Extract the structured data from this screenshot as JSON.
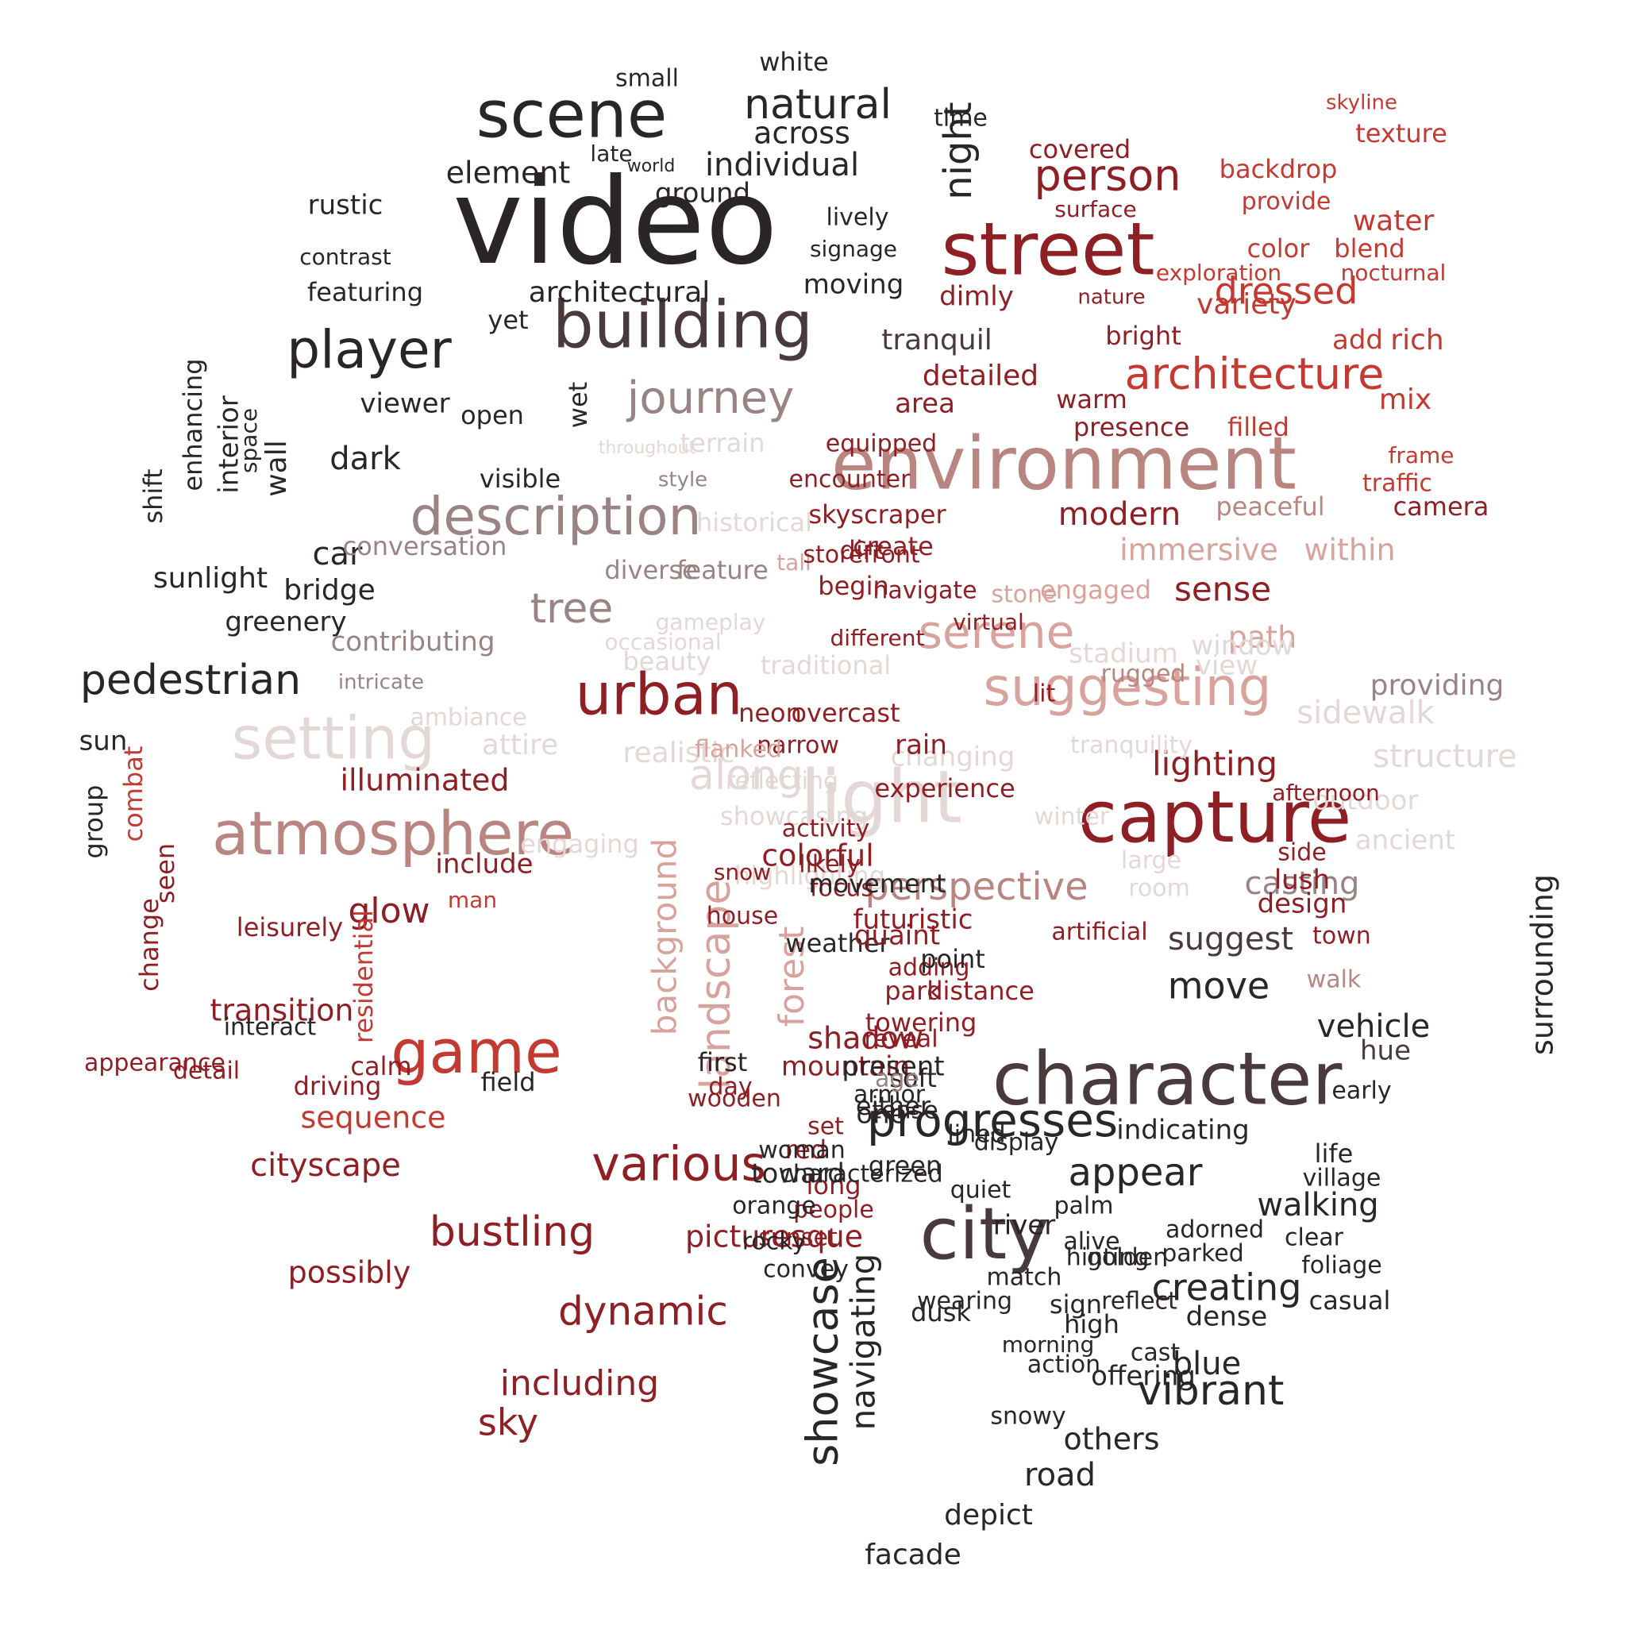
{
  "colors": {
    "background": "#ffffff",
    "dark": "#2a2627",
    "darkbrown": "#4a3a3b",
    "crimson": "#8e1f24",
    "red": "#c33a32",
    "salmon": "#cf6a58",
    "rose": "#b98580",
    "pink": "#d9a39d",
    "taupe": "#9a8483",
    "pale": "#e4d8d6"
  },
  "words": [
    {
      "text": "video",
      "color": "dark"
    },
    {
      "text": "street",
      "color": "crimson"
    },
    {
      "text": "scene",
      "color": "dark"
    },
    {
      "text": "building",
      "color": "darkbrown"
    },
    {
      "text": "environment",
      "color": "rose"
    },
    {
      "text": "character",
      "color": "darkbrown"
    },
    {
      "text": "capture",
      "color": "crimson"
    },
    {
      "text": "city",
      "color": "darkbrown"
    },
    {
      "text": "atmosphere",
      "color": "rose"
    },
    {
      "text": "urban",
      "color": "crimson"
    },
    {
      "text": "description",
      "color": "taupe"
    },
    {
      "text": "suggesting",
      "color": "pink"
    },
    {
      "text": "player",
      "color": "dark"
    },
    {
      "text": "game",
      "color": "red"
    },
    {
      "text": "various",
      "color": "crimson"
    },
    {
      "text": "progresses",
      "color": "dark"
    },
    {
      "text": "journey",
      "color": "taupe"
    },
    {
      "text": "setting",
      "color": "pale"
    },
    {
      "text": "light",
      "color": "pale"
    },
    {
      "text": "architecture",
      "color": "red"
    },
    {
      "text": "serene",
      "color": "pink"
    },
    {
      "text": "person",
      "color": "crimson"
    },
    {
      "text": "natural",
      "color": "dark"
    },
    {
      "text": "showcase",
      "color": "dark"
    },
    {
      "text": "landscape",
      "color": "pink"
    },
    {
      "text": "vibrant",
      "color": "dark"
    },
    {
      "text": "bustling",
      "color": "crimson"
    },
    {
      "text": "pedestrian",
      "color": "dark"
    },
    {
      "text": "dynamic",
      "color": "crimson"
    },
    {
      "text": "perspective",
      "color": "rose"
    },
    {
      "text": "appear",
      "color": "dark"
    },
    {
      "text": "tree",
      "color": "taupe"
    },
    {
      "text": "along",
      "color": "pale"
    },
    {
      "text": "night",
      "color": "dark"
    },
    {
      "text": "dressed",
      "color": "red"
    },
    {
      "text": "creating",
      "color": "dark"
    },
    {
      "text": "move",
      "color": "dark"
    },
    {
      "text": "sky",
      "color": "crimson"
    },
    {
      "text": "glow",
      "color": "crimson"
    },
    {
      "text": "including",
      "color": "crimson"
    },
    {
      "text": "lighting",
      "color": "crimson"
    },
    {
      "text": "casting",
      "color": "taupe"
    },
    {
      "text": "walking",
      "color": "dark"
    },
    {
      "text": "cityscape",
      "color": "crimson"
    },
    {
      "text": "navigating",
      "color": "dark"
    },
    {
      "text": "suggest",
      "color": "darkbrown"
    },
    {
      "text": "illuminated",
      "color": "crimson"
    },
    {
      "text": "road",
      "color": "dark"
    },
    {
      "text": "sidewalk",
      "color": "pale"
    },
    {
      "text": "structure",
      "color": "pale"
    },
    {
      "text": "forest",
      "color": "pink"
    },
    {
      "text": "background",
      "color": "pink"
    },
    {
      "text": "individual",
      "color": "dark"
    },
    {
      "text": "transition",
      "color": "crimson"
    },
    {
      "text": "sense",
      "color": "crimson"
    },
    {
      "text": "surrounding",
      "color": "dark"
    },
    {
      "text": "colorful",
      "color": "crimson"
    },
    {
      "text": "others",
      "color": "dark"
    },
    {
      "text": "element",
      "color": "dark"
    },
    {
      "text": "modern",
      "color": "crimson"
    },
    {
      "text": "shadow",
      "color": "crimson"
    },
    {
      "text": "vehicle",
      "color": "dark"
    },
    {
      "text": "sequence",
      "color": "red"
    },
    {
      "text": "path",
      "color": "pink"
    },
    {
      "text": "immersive",
      "color": "pink"
    },
    {
      "text": "within",
      "color": "pink"
    },
    {
      "text": "possibly",
      "color": "crimson"
    },
    {
      "text": "picturesque",
      "color": "crimson"
    },
    {
      "text": "across",
      "color": "dark"
    },
    {
      "text": "tranquil",
      "color": "darkbrown"
    },
    {
      "text": "viewer",
      "color": "dark"
    },
    {
      "text": "indicating",
      "color": "dark"
    },
    {
      "text": "detailed",
      "color": "crimson"
    },
    {
      "text": "futuristic",
      "color": "crimson"
    },
    {
      "text": "providing",
      "color": "taupe"
    },
    {
      "text": "mountain",
      "color": "crimson"
    },
    {
      "text": "depict",
      "color": "dark"
    },
    {
      "text": "facade",
      "color": "dark"
    },
    {
      "text": "blue",
      "color": "dark"
    },
    {
      "text": "warm",
      "color": "crimson"
    },
    {
      "text": "area",
      "color": "crimson"
    },
    {
      "text": "presence",
      "color": "crimson"
    },
    {
      "text": "filled",
      "color": "red"
    },
    {
      "text": "peaceful",
      "color": "rose"
    },
    {
      "text": "camera",
      "color": "crimson"
    },
    {
      "text": "traffic",
      "color": "red"
    },
    {
      "text": "frame",
      "color": "red"
    },
    {
      "text": "mix",
      "color": "red"
    },
    {
      "text": "variety",
      "color": "red"
    },
    {
      "text": "rich",
      "color": "red"
    },
    {
      "text": "add",
      "color": "red"
    },
    {
      "text": "water",
      "color": "red"
    },
    {
      "text": "texture",
      "color": "red"
    },
    {
      "text": "skyline",
      "color": "red"
    },
    {
      "text": "backdrop",
      "color": "red"
    },
    {
      "text": "provide",
      "color": "red"
    },
    {
      "text": "blend",
      "color": "red"
    },
    {
      "text": "color",
      "color": "red"
    },
    {
      "text": "exploration",
      "color": "red"
    },
    {
      "text": "nocturnal",
      "color": "red"
    },
    {
      "text": "bright",
      "color": "crimson"
    },
    {
      "text": "dimly",
      "color": "crimson"
    },
    {
      "text": "nature",
      "color": "crimson"
    },
    {
      "text": "surface",
      "color": "crimson"
    },
    {
      "text": "covered",
      "color": "crimson"
    },
    {
      "text": "time",
      "color": "dark"
    },
    {
      "text": "white",
      "color": "dark"
    },
    {
      "text": "small",
      "color": "dark"
    },
    {
      "text": "late",
      "color": "dark"
    },
    {
      "text": "world",
      "color": "dark"
    },
    {
      "text": "ground",
      "color": "dark"
    },
    {
      "text": "lively",
      "color": "dark"
    },
    {
      "text": "signage",
      "color": "dark"
    },
    {
      "text": "moving",
      "color": "dark"
    },
    {
      "text": "architectural",
      "color": "dark"
    },
    {
      "text": "featuring",
      "color": "dark"
    },
    {
      "text": "contrast",
      "color": "dark"
    },
    {
      "text": "rustic",
      "color": "dark"
    },
    {
      "text": "yet",
      "color": "dark"
    },
    {
      "text": "open",
      "color": "dark"
    },
    {
      "text": "dark",
      "color": "dark"
    },
    {
      "text": "visible",
      "color": "dark"
    },
    {
      "text": "wet",
      "color": "dark"
    },
    {
      "text": "car",
      "color": "dark"
    },
    {
      "text": "wall",
      "color": "dark"
    },
    {
      "text": "space",
      "color": "dark"
    },
    {
      "text": "interior",
      "color": "dark"
    },
    {
      "text": "enhancing",
      "color": "dark"
    },
    {
      "text": "shift",
      "color": "dark"
    },
    {
      "text": "sunlight",
      "color": "dark"
    },
    {
      "text": "bridge",
      "color": "dark"
    },
    {
      "text": "greenery",
      "color": "dark"
    },
    {
      "text": "sun",
      "color": "dark"
    },
    {
      "text": "group",
      "color": "dark"
    },
    {
      "text": "contributing",
      "color": "taupe"
    },
    {
      "text": "intricate",
      "color": "taupe"
    },
    {
      "text": "conversation",
      "color": "taupe"
    },
    {
      "text": "diverse",
      "color": "taupe"
    },
    {
      "text": "feature",
      "color": "taupe"
    },
    {
      "text": "historical",
      "color": "pale"
    },
    {
      "text": "style",
      "color": "taupe"
    },
    {
      "text": "terrain",
      "color": "pale"
    },
    {
      "text": "throughout",
      "color": "pale"
    },
    {
      "text": "gameplay",
      "color": "pale"
    },
    {
      "text": "occasional",
      "color": "pale"
    },
    {
      "text": "beauty",
      "color": "pale"
    },
    {
      "text": "traditional",
      "color": "pale"
    },
    {
      "text": "ambiance",
      "color": "pale"
    },
    {
      "text": "attire",
      "color": "pale"
    },
    {
      "text": "realistic",
      "color": "pale"
    },
    {
      "text": "showcasing",
      "color": "pale"
    },
    {
      "text": "engaging",
      "color": "pale"
    },
    {
      "text": "view",
      "color": "pale"
    },
    {
      "text": "window",
      "color": "pale"
    },
    {
      "text": "outdoor",
      "color": "pale"
    },
    {
      "text": "ancient",
      "color": "pale"
    },
    {
      "text": "large",
      "color": "pale"
    },
    {
      "text": "room",
      "color": "pale"
    },
    {
      "text": "winter",
      "color": "pale"
    },
    {
      "text": "tranquility",
      "color": "pale"
    },
    {
      "text": "changing",
      "color": "pale"
    },
    {
      "text": "stadium",
      "color": "pale"
    },
    {
      "text": "rugged",
      "color": "rose"
    },
    {
      "text": "engaged",
      "color": "pink"
    },
    {
      "text": "stone",
      "color": "pink"
    },
    {
      "text": "tall",
      "color": "pink"
    },
    {
      "text": "dirt",
      "color": "crimson"
    },
    {
      "text": "rain",
      "color": "crimson"
    },
    {
      "text": "lit",
      "color": "crimson"
    },
    {
      "text": "experience",
      "color": "crimson"
    },
    {
      "text": "create",
      "color": "crimson"
    },
    {
      "text": "skyscraper",
      "color": "crimson"
    },
    {
      "text": "equipped",
      "color": "crimson"
    },
    {
      "text": "encounter",
      "color": "crimson"
    },
    {
      "text": "storefront",
      "color": "crimson"
    },
    {
      "text": "begin",
      "color": "crimson"
    },
    {
      "text": "different",
      "color": "crimson"
    },
    {
      "text": "overcast",
      "color": "crimson"
    },
    {
      "text": "neon",
      "color": "crimson"
    },
    {
      "text": "narrow",
      "color": "crimson"
    },
    {
      "text": "navigate",
      "color": "crimson"
    },
    {
      "text": "virtual",
      "color": "crimson"
    },
    {
      "text": "flanked",
      "color": "pink"
    },
    {
      "text": "reflecting",
      "color": "pale"
    },
    {
      "text": "highlighting",
      "color": "pale"
    },
    {
      "text": "adding",
      "color": "crimson"
    },
    {
      "text": "include",
      "color": "crimson"
    },
    {
      "text": "man",
      "color": "red"
    },
    {
      "text": "residential",
      "color": "red"
    },
    {
      "text": "combat",
      "color": "red"
    },
    {
      "text": "seen",
      "color": "crimson"
    },
    {
      "text": "change",
      "color": "crimson"
    },
    {
      "text": "appearance",
      "color": "crimson"
    },
    {
      "text": "detail",
      "color": "crimson"
    },
    {
      "text": "driving",
      "color": "crimson"
    },
    {
      "text": "calm",
      "color": "crimson"
    },
    {
      "text": "likely",
      "color": "crimson"
    },
    {
      "text": "focus",
      "color": "crimson"
    },
    {
      "text": "activity",
      "color": "crimson"
    },
    {
      "text": "red",
      "color": "crimson"
    },
    {
      "text": "long",
      "color": "crimson"
    },
    {
      "text": "set",
      "color": "crimson"
    },
    {
      "text": "park",
      "color": "crimson"
    },
    {
      "text": "towering",
      "color": "crimson"
    },
    {
      "text": "wooden",
      "color": "crimson"
    },
    {
      "text": "day",
      "color": "crimson"
    },
    {
      "text": "snow",
      "color": "crimson"
    },
    {
      "text": "house",
      "color": "crimson"
    },
    {
      "text": "leisurely",
      "color": "crimson"
    },
    {
      "text": "interact",
      "color": "dark"
    },
    {
      "text": "movement",
      "color": "dark"
    },
    {
      "text": "weather",
      "color": "dark"
    },
    {
      "text": "present",
      "color": "dark"
    },
    {
      "text": "either",
      "color": "dark"
    },
    {
      "text": "characterized",
      "color": "dark"
    },
    {
      "text": "people",
      "color": "crimson"
    },
    {
      "text": "sunset",
      "color": "crimson"
    },
    {
      "text": "first",
      "color": "dark"
    },
    {
      "text": "field",
      "color": "dark"
    },
    {
      "text": "armor",
      "color": "dark"
    },
    {
      "text": "soft",
      "color": "dark"
    },
    {
      "text": "tense",
      "color": "dark"
    },
    {
      "text": "green",
      "color": "dark"
    },
    {
      "text": "quiet",
      "color": "dark"
    },
    {
      "text": "lined",
      "color": "dark"
    },
    {
      "text": "display",
      "color": "dark"
    },
    {
      "text": "river",
      "color": "dark"
    },
    {
      "text": "match",
      "color": "dark"
    },
    {
      "text": "sign",
      "color": "dark"
    },
    {
      "text": "high",
      "color": "dark"
    },
    {
      "text": "cast",
      "color": "dark"
    },
    {
      "text": "snowy",
      "color": "dark"
    },
    {
      "text": "offering",
      "color": "dark"
    },
    {
      "text": "action",
      "color": "dark"
    },
    {
      "text": "alive",
      "color": "dark"
    },
    {
      "text": "hinting",
      "color": "dark"
    },
    {
      "text": "dense",
      "color": "dark"
    },
    {
      "text": "parked",
      "color": "dark"
    },
    {
      "text": "adorned",
      "color": "dark"
    },
    {
      "text": "clear",
      "color": "dark"
    },
    {
      "text": "foliage",
      "color": "dark"
    },
    {
      "text": "casual",
      "color": "dark"
    },
    {
      "text": "village",
      "color": "dark"
    },
    {
      "text": "life",
      "color": "dark"
    },
    {
      "text": "early",
      "color": "dark"
    },
    {
      "text": "hue",
      "color": "darkbrown"
    },
    {
      "text": "walk",
      "color": "rose"
    },
    {
      "text": "town",
      "color": "crimson"
    },
    {
      "text": "design",
      "color": "crimson"
    },
    {
      "text": "lush",
      "color": "crimson"
    },
    {
      "text": "side",
      "color": "crimson"
    },
    {
      "text": "afternoon",
      "color": "crimson"
    },
    {
      "text": "artificial",
      "color": "crimson"
    },
    {
      "text": "quaint",
      "color": "crimson"
    },
    {
      "text": "point",
      "color": "dark"
    },
    {
      "text": "distance",
      "color": "crimson"
    },
    {
      "text": "reveal",
      "color": "crimson"
    },
    {
      "text": "age",
      "color": "taupe"
    },
    {
      "text": "one",
      "color": "dark"
    },
    {
      "text": "woman",
      "color": "dark"
    },
    {
      "text": "toward",
      "color": "dark"
    },
    {
      "text": "orange",
      "color": "dark"
    },
    {
      "text": "rocky",
      "color": "dark"
    },
    {
      "text": "convey",
      "color": "dark"
    },
    {
      "text": "wearing",
      "color": "dark"
    },
    {
      "text": "dusk",
      "color": "dark"
    },
    {
      "text": "morning",
      "color": "dark"
    },
    {
      "text": "reflect",
      "color": "dark"
    },
    {
      "text": "golden",
      "color": "dark"
    },
    {
      "text": "palm",
      "color": "dark"
    }
  ]
}
